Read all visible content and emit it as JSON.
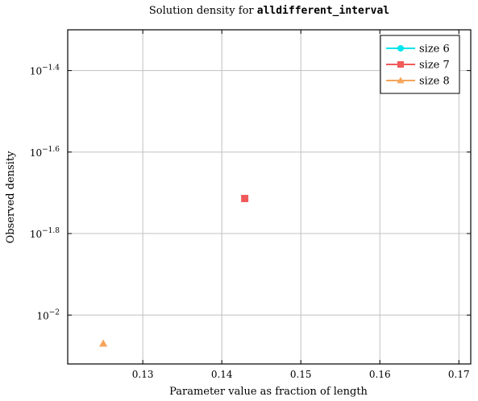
{
  "chart_data": {
    "type": "scatter",
    "title_prefix": "Solution density for ",
    "title_code": "alldifferent_interval",
    "xlabel": "Parameter value as fraction of length",
    "ylabel": "Observed density",
    "x_scale": "linear",
    "y_scale": "log10",
    "xlim": [
      0.1205,
      0.1715
    ],
    "ylim_log10": [
      -2.12,
      -1.3
    ],
    "x_ticks": [
      {
        "value": 0.13,
        "label": "0.13"
      },
      {
        "value": 0.14,
        "label": "0.14"
      },
      {
        "value": 0.15,
        "label": "0.15"
      },
      {
        "value": 0.16,
        "label": "0.16"
      },
      {
        "value": 0.17,
        "label": "0.17"
      }
    ],
    "y_ticks": [
      {
        "log10": -1.4,
        "base": "10",
        "exp": "−1.4"
      },
      {
        "log10": -1.6,
        "base": "10",
        "exp": "−1.6"
      },
      {
        "log10": -1.8,
        "base": "10",
        "exp": "−1.8"
      },
      {
        "log10": -2.0,
        "base": "10",
        "exp": "−2"
      }
    ],
    "grid": true,
    "legend_position": "top-right",
    "series": [
      {
        "name": "size 6",
        "color": "#00e5ee",
        "marker": "circle",
        "points": []
      },
      {
        "name": "size 7",
        "color": "#f05a5a",
        "marker": "square",
        "points": [
          {
            "x": 0.1429,
            "log10_y": -1.714
          }
        ]
      },
      {
        "name": "size 8",
        "color": "#f5a55a",
        "marker": "triangle",
        "points": [
          {
            "x": 0.125,
            "log10_y": -2.07
          }
        ]
      }
    ]
  }
}
